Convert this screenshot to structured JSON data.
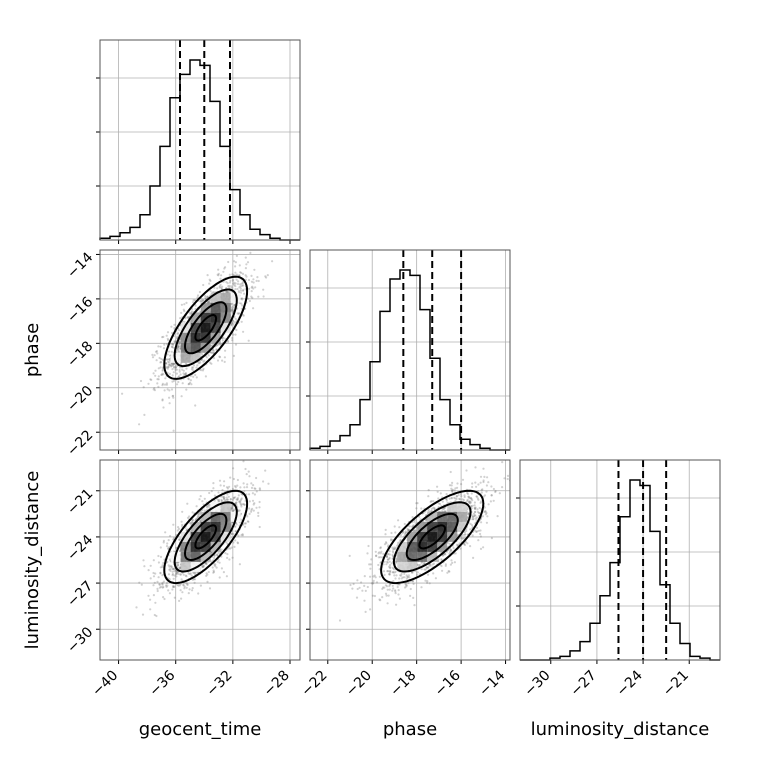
{
  "chart_data": {
    "type": "corner",
    "parameters": [
      {
        "name": "geocent_time",
        "label": "geocent_time",
        "range": [
          -41.3,
          -27.3
        ],
        "ticks": [
          -40,
          -36,
          -32,
          -28
        ],
        "tick_labels": [
          "−40",
          "−36",
          "−32",
          "−28"
        ],
        "quantiles": [
          -35.7,
          -34.0,
          -32.2
        ],
        "histogram": {
          "bin_start": -41.3,
          "bin_width": 0.7,
          "counts": [
            1,
            2,
            4,
            7,
            14,
            30,
            52,
            79,
            92,
            100,
            97,
            77,
            52,
            28,
            14,
            6,
            3,
            1,
            0,
            0
          ]
        }
      },
      {
        "name": "phase",
        "label": "phase",
        "range": [
          -22.8,
          -13.8
        ],
        "ticks": [
          -22,
          -20,
          -18,
          -16,
          -14
        ],
        "tick_labels": [
          "−22",
          "−20",
          "−18",
          "−16",
          "−14"
        ],
        "quantiles": [
          -18.6,
          -17.3,
          -16.0
        ],
        "histogram": {
          "bin_start": -22.8,
          "bin_width": 0.45,
          "counts": [
            1,
            2,
            5,
            8,
            14,
            28,
            49,
            77,
            95,
            100,
            97,
            78,
            51,
            28,
            14,
            6,
            3,
            1,
            0,
            0
          ]
        }
      },
      {
        "name": "luminosity_distance",
        "label": "luminosity_distance",
        "range": [
          -32.0,
          -19.0
        ],
        "ticks": [
          -30,
          -27,
          -24,
          -21
        ],
        "tick_labels": [
          "−30",
          "−27",
          "−24",
          "−21"
        ],
        "quantiles": [
          -25.6,
          -24.0,
          -22.5
        ],
        "histogram": {
          "bin_start": -32.0,
          "bin_width": 0.65,
          "counts": [
            0,
            0,
            0,
            1,
            2,
            5,
            10,
            20,
            35,
            53,
            78,
            98,
            95,
            70,
            41,
            20,
            9,
            2,
            1,
            0
          ]
        }
      }
    ],
    "scatter_panels": [
      {
        "x": "geocent_time",
        "y": "phase",
        "center": [
          -33.9,
          -17.3
        ],
        "sd": [
          1.45,
          1.15
        ],
        "correlation": 0.72
      },
      {
        "x": "geocent_time",
        "y": "luminosity_distance",
        "center": [
          -33.9,
          -24.0
        ],
        "sd": [
          1.45,
          1.5
        ],
        "correlation": 0.72
      },
      {
        "x": "phase",
        "y": "luminosity_distance",
        "center": [
          -17.3,
          -24.0
        ],
        "sd": [
          1.15,
          1.5
        ],
        "correlation": 0.72
      }
    ],
    "contour_levels_sigma": [
      0.5,
      1.0,
      1.5,
      2.0
    ],
    "grid": true
  },
  "colors": {
    "contour": "#000000",
    "points": "#7a7a7a",
    "grid": "#b0b0b0"
  }
}
